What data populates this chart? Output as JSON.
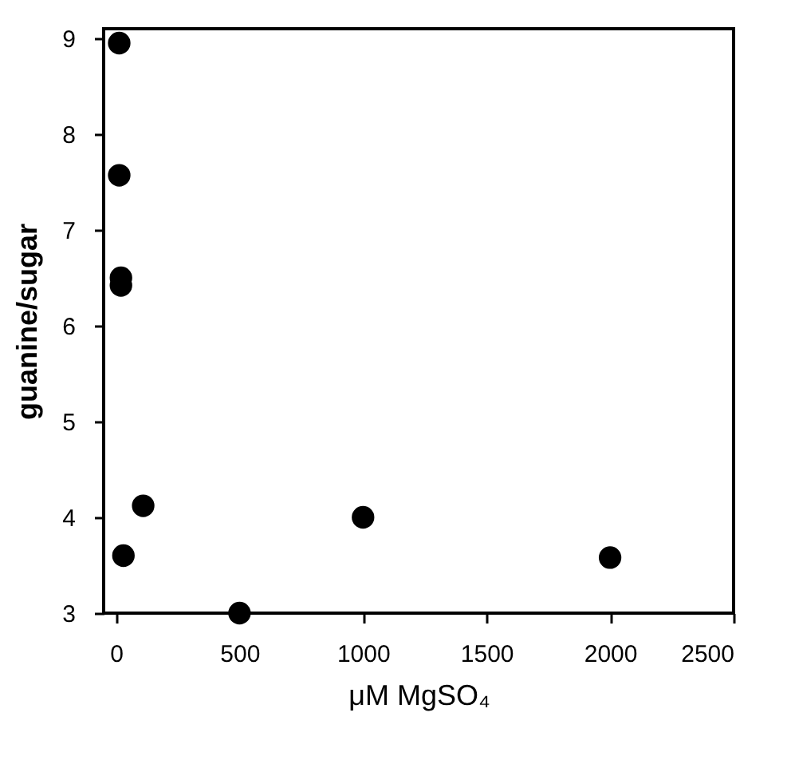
{
  "chart_data": {
    "type": "scatter",
    "xlabel": "μM MgSO₄",
    "ylabel": "guanine/sugar",
    "x": [
      13,
      13,
      20,
      20,
      110,
      30,
      500,
      1000,
      2000
    ],
    "series": [
      {
        "color": "#000000",
        "values": [
          8.95,
          7.57,
          6.5,
          6.42,
          4.12,
          3.6,
          3.0,
          4.0,
          3.58
        ]
      }
    ],
    "xlim": [
      -50,
      2500
    ],
    "xticks": [
      0,
      500,
      1000,
      1500,
      2000,
      2500
    ],
    "ylim": [
      3,
      9.1
    ],
    "yticks": [
      3,
      4,
      5,
      6,
      7,
      8,
      9
    ],
    "marker": "circle",
    "grid": false,
    "legend": false
  }
}
